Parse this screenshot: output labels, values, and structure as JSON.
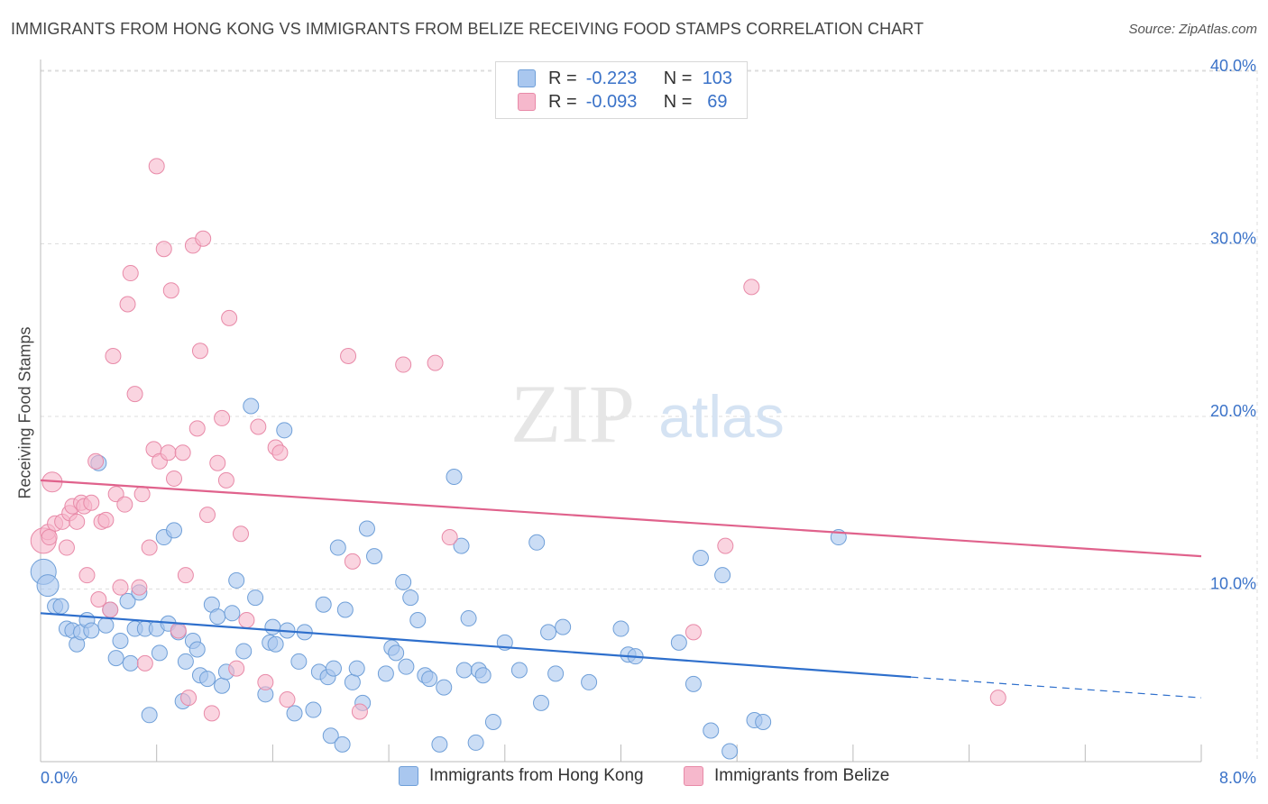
{
  "title": "IMMIGRANTS FROM HONG KONG VS IMMIGRANTS FROM BELIZE RECEIVING FOOD STAMPS CORRELATION CHART",
  "source": "Source: ZipAtlas.com",
  "watermark": {
    "zip": "ZIP",
    "atlas": "atlas"
  },
  "legend": {
    "rows": [
      {
        "r_label": "R =",
        "r_value": "-0.223",
        "n_label": "N =",
        "n_value": "103",
        "color": "#a9c7ef",
        "edge": "#6f9fd8"
      },
      {
        "r_label": "R =",
        "r_value": "-0.093",
        "n_label": "N =",
        "n_value": "69",
        "color": "#f6b8cc",
        "edge": "#e88aa8"
      }
    ]
  },
  "bottom_legend": [
    {
      "label": "Immigrants from Hong Kong",
      "color": "#a9c7ef",
      "edge": "#6f9fd8"
    },
    {
      "label": "Immigrants from Belize",
      "color": "#f6b8cc",
      "edge": "#e88aa8"
    }
  ],
  "chart_data": {
    "type": "scatter",
    "title": "IMMIGRANTS FROM HONG KONG VS IMMIGRANTS FROM BELIZE RECEIVING FOOD STAMPS CORRELATION CHART",
    "xlabel": "",
    "ylabel": "Receiving Food Stamps",
    "xlim": [
      0,
      8
    ],
    "ylim": [
      0,
      40
    ],
    "x_tick_labels": [
      "0.0%",
      "8.0%"
    ],
    "y_ticks": [
      10,
      20,
      30,
      40
    ],
    "y_tick_labels": [
      "10.0%",
      "20.0%",
      "30.0%",
      "40.0%"
    ],
    "grid": true,
    "legend_position": "top-center",
    "series": [
      {
        "name": "Immigrants from Hong Kong",
        "color": "#6f9fd8",
        "fill": "#a9c7ef",
        "trend": {
          "x": [
            0,
            6.0
          ],
          "y": [
            8.6,
            4.9
          ],
          "dashed_to": [
            8,
            3.7
          ],
          "color": "#2e6fcc"
        },
        "points": [
          [
            0.02,
            11.0
          ],
          [
            0.05,
            10.2
          ],
          [
            0.1,
            9.0
          ],
          [
            0.14,
            9.0
          ],
          [
            0.18,
            7.7
          ],
          [
            0.22,
            7.6
          ],
          [
            0.25,
            6.8
          ],
          [
            0.28,
            7.5
          ],
          [
            0.32,
            8.2
          ],
          [
            0.35,
            7.6
          ],
          [
            0.4,
            17.3
          ],
          [
            0.45,
            7.9
          ],
          [
            0.48,
            8.8
          ],
          [
            0.52,
            6.0
          ],
          [
            0.55,
            7.0
          ],
          [
            0.6,
            9.3
          ],
          [
            0.62,
            5.7
          ],
          [
            0.65,
            7.7
          ],
          [
            0.68,
            9.8
          ],
          [
            0.72,
            7.7
          ],
          [
            0.75,
            2.7
          ],
          [
            0.8,
            7.7
          ],
          [
            0.82,
            6.3
          ],
          [
            0.85,
            13.0
          ],
          [
            0.88,
            8.0
          ],
          [
            0.92,
            13.4
          ],
          [
            0.95,
            7.5
          ],
          [
            0.98,
            3.5
          ],
          [
            1.0,
            5.8
          ],
          [
            1.05,
            7.0
          ],
          [
            1.08,
            6.5
          ],
          [
            1.1,
            5.0
          ],
          [
            1.15,
            4.8
          ],
          [
            1.18,
            9.1
          ],
          [
            1.22,
            8.4
          ],
          [
            1.25,
            4.4
          ],
          [
            1.28,
            5.2
          ],
          [
            1.32,
            8.6
          ],
          [
            1.35,
            10.5
          ],
          [
            1.4,
            6.4
          ],
          [
            1.45,
            20.6
          ],
          [
            1.48,
            9.5
          ],
          [
            1.55,
            3.9
          ],
          [
            1.58,
            6.9
          ],
          [
            1.6,
            7.8
          ],
          [
            1.62,
            6.8
          ],
          [
            1.68,
            19.2
          ],
          [
            1.7,
            7.6
          ],
          [
            1.75,
            2.8
          ],
          [
            1.78,
            5.8
          ],
          [
            1.82,
            7.5
          ],
          [
            1.88,
            3.0
          ],
          [
            1.92,
            5.2
          ],
          [
            1.95,
            9.1
          ],
          [
            1.98,
            4.9
          ],
          [
            2.0,
            1.5
          ],
          [
            2.02,
            5.4
          ],
          [
            2.05,
            12.4
          ],
          [
            2.08,
            1.0
          ],
          [
            2.1,
            8.8
          ],
          [
            2.15,
            4.6
          ],
          [
            2.18,
            5.4
          ],
          [
            2.22,
            3.4
          ],
          [
            2.25,
            13.5
          ],
          [
            2.3,
            11.9
          ],
          [
            2.38,
            5.1
          ],
          [
            2.42,
            6.6
          ],
          [
            2.45,
            6.3
          ],
          [
            2.5,
            10.4
          ],
          [
            2.52,
            5.5
          ],
          [
            2.55,
            9.5
          ],
          [
            2.6,
            8.2
          ],
          [
            2.65,
            5.0
          ],
          [
            2.68,
            4.8
          ],
          [
            2.75,
            1.0
          ],
          [
            2.78,
            4.3
          ],
          [
            2.85,
            16.5
          ],
          [
            2.9,
            12.5
          ],
          [
            2.92,
            5.3
          ],
          [
            2.95,
            8.3
          ],
          [
            3.0,
            1.1
          ],
          [
            3.02,
            5.3
          ],
          [
            3.05,
            5.0
          ],
          [
            3.12,
            2.3
          ],
          [
            3.2,
            6.9
          ],
          [
            3.3,
            5.3
          ],
          [
            3.42,
            12.7
          ],
          [
            3.45,
            3.4
          ],
          [
            3.5,
            7.5
          ],
          [
            3.55,
            5.1
          ],
          [
            3.6,
            7.8
          ],
          [
            3.78,
            4.6
          ],
          [
            4.0,
            7.7
          ],
          [
            4.05,
            6.2
          ],
          [
            4.1,
            6.1
          ],
          [
            4.4,
            6.9
          ],
          [
            4.5,
            4.5
          ],
          [
            4.55,
            11.8
          ],
          [
            4.62,
            1.8
          ],
          [
            4.7,
            10.8
          ],
          [
            4.75,
            0.6
          ],
          [
            4.92,
            2.4
          ],
          [
            4.98,
            2.3
          ],
          [
            5.5,
            13.0
          ]
        ]
      },
      {
        "name": "Immigrants from Belize",
        "color": "#e88aa8",
        "fill": "#f6b8cc",
        "trend": {
          "x": [
            0,
            8.0
          ],
          "y": [
            16.3,
            11.9
          ],
          "color": "#e0628c"
        },
        "points": [
          [
            0.02,
            12.8
          ],
          [
            0.05,
            13.3
          ],
          [
            0.08,
            16.2
          ],
          [
            0.1,
            13.8
          ],
          [
            0.15,
            13.9
          ],
          [
            0.18,
            12.4
          ],
          [
            0.2,
            14.4
          ],
          [
            0.22,
            14.8
          ],
          [
            0.25,
            13.9
          ],
          [
            0.28,
            15.0
          ],
          [
            0.3,
            14.8
          ],
          [
            0.32,
            10.8
          ],
          [
            0.35,
            15.0
          ],
          [
            0.38,
            17.4
          ],
          [
            0.4,
            9.4
          ],
          [
            0.42,
            13.9
          ],
          [
            0.45,
            14.0
          ],
          [
            0.48,
            8.8
          ],
          [
            0.5,
            23.5
          ],
          [
            0.52,
            15.5
          ],
          [
            0.55,
            10.1
          ],
          [
            0.58,
            14.9
          ],
          [
            0.6,
            26.5
          ],
          [
            0.62,
            28.3
          ],
          [
            0.65,
            21.3
          ],
          [
            0.68,
            10.1
          ],
          [
            0.7,
            15.5
          ],
          [
            0.72,
            5.7
          ],
          [
            0.75,
            12.4
          ],
          [
            0.78,
            18.1
          ],
          [
            0.8,
            34.5
          ],
          [
            0.82,
            17.4
          ],
          [
            0.85,
            29.7
          ],
          [
            0.88,
            17.9
          ],
          [
            0.9,
            27.3
          ],
          [
            0.92,
            16.4
          ],
          [
            0.95,
            7.6
          ],
          [
            0.98,
            17.9
          ],
          [
            1.0,
            10.8
          ],
          [
            1.02,
            3.7
          ],
          [
            1.05,
            29.9
          ],
          [
            1.08,
            19.3
          ],
          [
            1.1,
            23.8
          ],
          [
            1.12,
            30.3
          ],
          [
            1.15,
            14.3
          ],
          [
            1.18,
            2.8
          ],
          [
            1.22,
            17.3
          ],
          [
            1.25,
            19.9
          ],
          [
            1.28,
            16.3
          ],
          [
            1.3,
            25.7
          ],
          [
            1.35,
            5.4
          ],
          [
            1.38,
            13.2
          ],
          [
            1.42,
            8.2
          ],
          [
            1.5,
            19.4
          ],
          [
            1.55,
            4.6
          ],
          [
            1.62,
            18.2
          ],
          [
            1.65,
            17.9
          ],
          [
            1.7,
            3.6
          ],
          [
            2.12,
            23.5
          ],
          [
            2.15,
            11.6
          ],
          [
            2.2,
            2.9
          ],
          [
            2.5,
            23.0
          ],
          [
            2.72,
            23.1
          ],
          [
            2.82,
            13.0
          ],
          [
            4.5,
            7.5
          ],
          [
            4.72,
            12.5
          ],
          [
            4.9,
            27.5
          ],
          [
            6.6,
            3.7
          ],
          [
            0.06,
            13.0
          ]
        ]
      }
    ]
  }
}
